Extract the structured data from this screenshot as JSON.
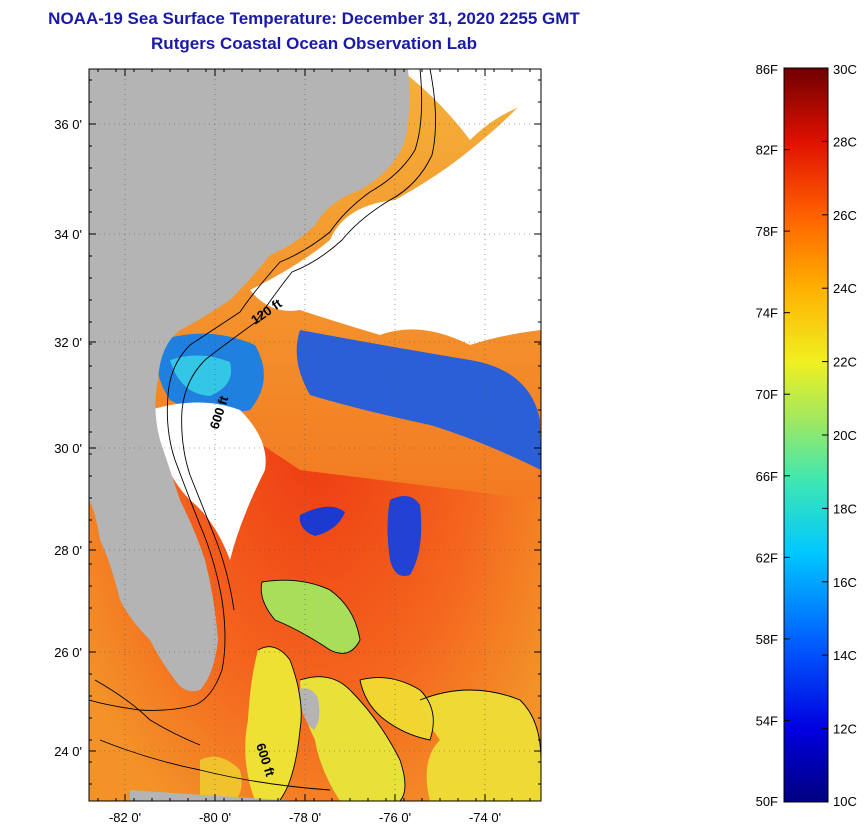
{
  "header": {
    "title_line1": "NOAA-19 Sea Surface Temperature:  December 31, 2020 2255 GMT",
    "title_line2": "Rutgers Coastal Ocean Observation Lab"
  },
  "map": {
    "lat_ticks": [
      "36 0'",
      "34 0'",
      "32 0'",
      "30 0'",
      "28 0'",
      "26 0'",
      "24 0'"
    ],
    "lon_ticks": [
      "-82 0'",
      "-80 0'",
      "-78 0'",
      "-76 0'",
      "-74 0'"
    ],
    "contour_labels": [
      "120 ft",
      "600 ft",
      "600 ft"
    ],
    "colors": {
      "land": "#b4b4b4",
      "cloud": "#ffffff",
      "warm": "#f04a1a",
      "cool": "#1a3ad0"
    }
  },
  "colorbar": {
    "fahrenheit_labels": [
      "86F",
      "82F",
      "78F",
      "74F",
      "70F",
      "66F",
      "62F",
      "58F",
      "54F",
      "50F"
    ],
    "celsius_labels": [
      "30C",
      "28C",
      "26C",
      "24C",
      "22C",
      "20C",
      "18C",
      "16C",
      "14C",
      "12C",
      "10C"
    ],
    "range_f": [
      50,
      86
    ],
    "range_c": [
      10,
      30
    ]
  }
}
